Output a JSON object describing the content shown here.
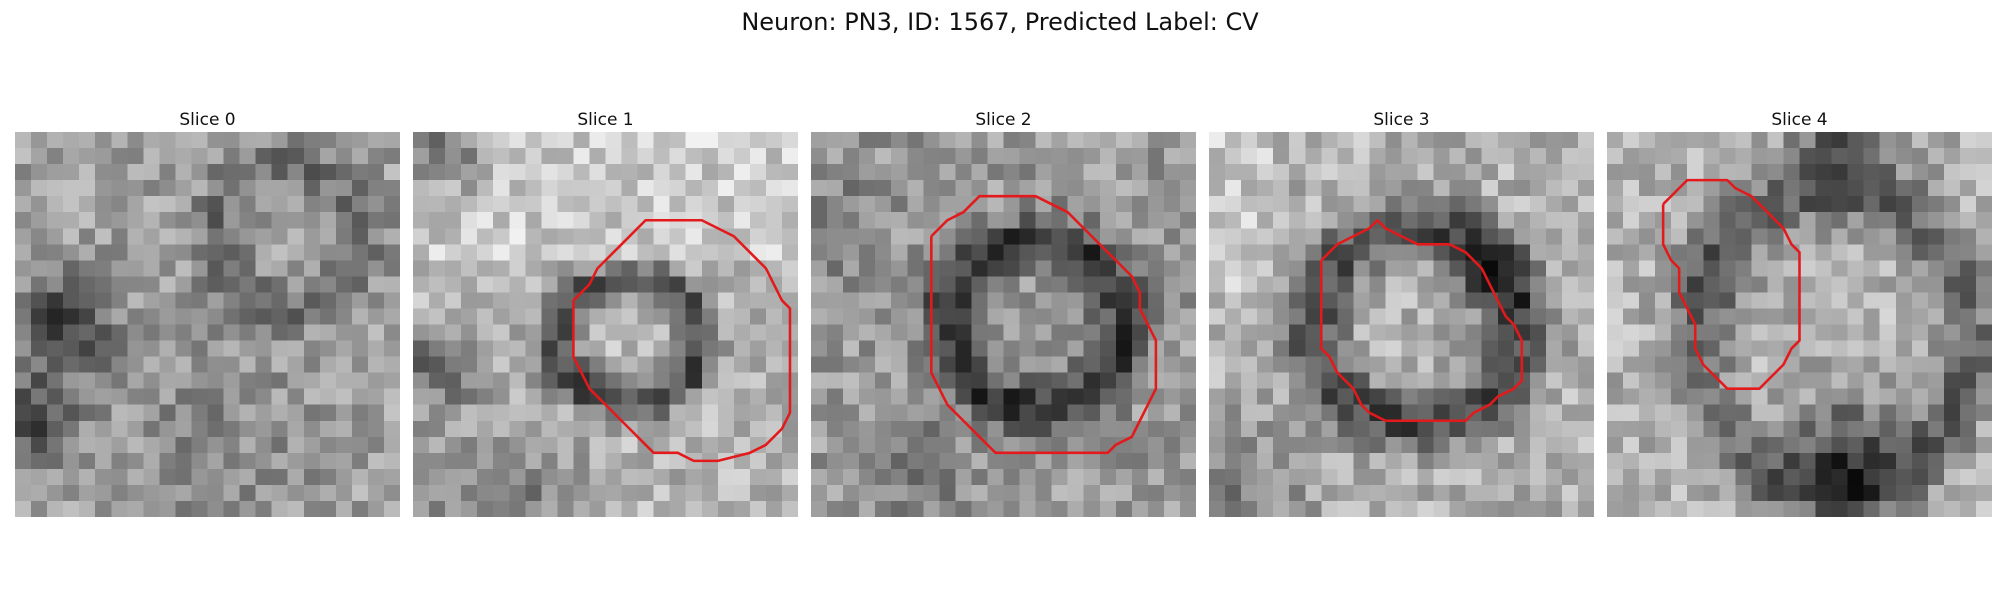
{
  "figure": {
    "title": "Neuron: PN3, ID: 1567, Predicted Label: CV"
  },
  "panels": [
    {
      "title": "Slice 0",
      "contour": []
    },
    {
      "title": "Slice 1",
      "contour": [
        [
          10,
          10.5
        ],
        [
          11,
          9.5
        ],
        [
          11.5,
          8.5
        ],
        [
          13,
          7
        ],
        [
          14.5,
          5.5
        ],
        [
          18,
          5.5
        ],
        [
          19,
          6
        ],
        [
          20,
          6.5
        ],
        [
          21,
          7.5
        ],
        [
          22,
          8.5
        ],
        [
          22.5,
          9.5
        ],
        [
          23,
          10.5
        ],
        [
          23.5,
          11
        ],
        [
          23.5,
          17.5
        ],
        [
          23,
          18.5
        ],
        [
          22,
          19.5
        ],
        [
          21,
          20
        ],
        [
          19,
          20.5
        ],
        [
          17.5,
          20.5
        ],
        [
          16.5,
          20
        ],
        [
          15,
          20
        ],
        [
          14,
          19
        ],
        [
          13,
          18
        ],
        [
          12,
          17
        ],
        [
          11,
          16
        ],
        [
          10.5,
          15
        ],
        [
          10,
          14
        ],
        [
          10,
          10.5
        ]
      ]
    },
    {
      "title": "Slice 2",
      "contour": [
        [
          7.5,
          6.5
        ],
        [
          8.5,
          5.5
        ],
        [
          9.5,
          5
        ],
        [
          10.5,
          4
        ],
        [
          14,
          4
        ],
        [
          15,
          4.5
        ],
        [
          16,
          5
        ],
        [
          17,
          6
        ],
        [
          18,
          7
        ],
        [
          19,
          8
        ],
        [
          20,
          9
        ],
        [
          20.5,
          10
        ],
        [
          20.5,
          11
        ],
        [
          21,
          12
        ],
        [
          21.5,
          13
        ],
        [
          21.5,
          16
        ],
        [
          21,
          17
        ],
        [
          20.5,
          18
        ],
        [
          20,
          19
        ],
        [
          19,
          19.5
        ],
        [
          18.5,
          20
        ],
        [
          11.5,
          20
        ],
        [
          10.5,
          19
        ],
        [
          9.5,
          18
        ],
        [
          8.5,
          17
        ],
        [
          8,
          16
        ],
        [
          7.5,
          15
        ],
        [
          7.5,
          6.5
        ]
      ]
    },
    {
      "title": "Slice 3",
      "contour": [
        [
          7,
          8
        ],
        [
          8,
          7
        ],
        [
          9,
          6.5
        ],
        [
          10,
          6
        ],
        [
          10.5,
          5.5
        ],
        [
          11,
          6
        ],
        [
          12,
          6.5
        ],
        [
          13,
          7
        ],
        [
          15,
          7
        ],
        [
          16,
          7.5
        ],
        [
          17,
          8.5
        ],
        [
          17.5,
          9.5
        ],
        [
          18,
          10.5
        ],
        [
          18.5,
          11.5
        ],
        [
          19,
          12
        ],
        [
          19.5,
          13
        ],
        [
          19.5,
          15.5
        ],
        [
          19,
          16
        ],
        [
          18,
          16.5
        ],
        [
          17.5,
          17
        ],
        [
          16.5,
          17.5
        ],
        [
          16,
          18
        ],
        [
          11,
          18
        ],
        [
          10,
          17.5
        ],
        [
          9.5,
          17
        ],
        [
          9,
          16
        ],
        [
          8,
          15
        ],
        [
          7.5,
          14
        ],
        [
          7,
          13.5
        ],
        [
          7,
          8
        ]
      ]
    },
    {
      "title": "Slice 4",
      "contour": [
        [
          3.5,
          4.5
        ],
        [
          4.5,
          3.5
        ],
        [
          5,
          3
        ],
        [
          7.5,
          3
        ],
        [
          8,
          3.5
        ],
        [
          9,
          4
        ],
        [
          10,
          5
        ],
        [
          11,
          6
        ],
        [
          11.5,
          7
        ],
        [
          12,
          7.5
        ],
        [
          12,
          13
        ],
        [
          11.5,
          13.5
        ],
        [
          11,
          14.5
        ],
        [
          10,
          15.5
        ],
        [
          9.5,
          16
        ],
        [
          7.5,
          16
        ],
        [
          7,
          15.5
        ],
        [
          6,
          14.5
        ],
        [
          5.5,
          13.5
        ],
        [
          5.5,
          12
        ],
        [
          5,
          11
        ],
        [
          4.5,
          10
        ],
        [
          4.5,
          8.5
        ],
        [
          4,
          8
        ],
        [
          3.5,
          7
        ],
        [
          3.5,
          4.5
        ]
      ]
    }
  ],
  "image_grid": {
    "cells": 24,
    "colormap": "gray"
  },
  "contour_color": "#e31a1c"
}
